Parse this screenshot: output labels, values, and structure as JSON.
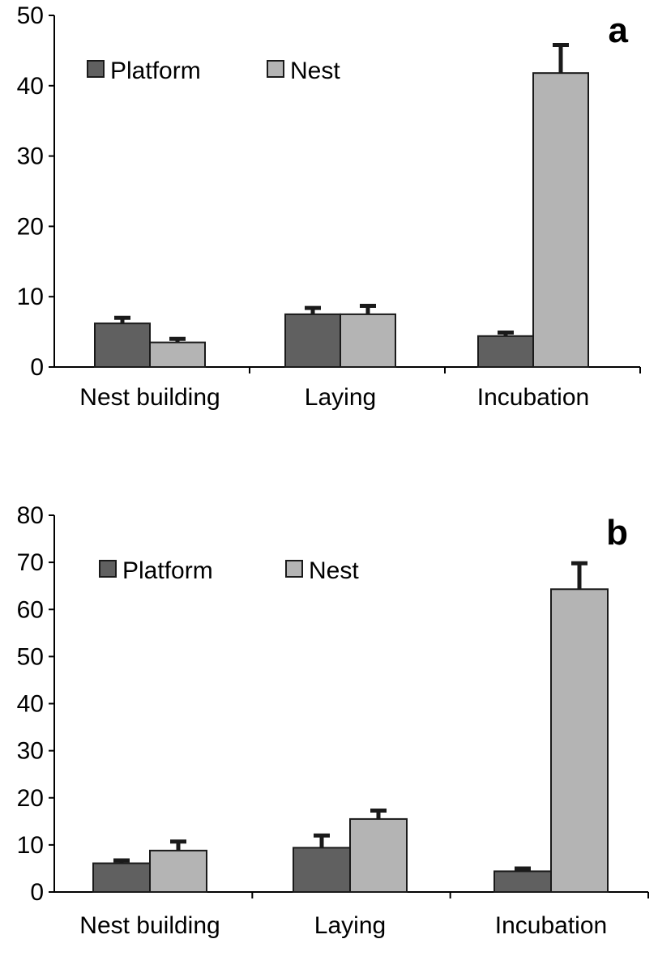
{
  "chart_data": [
    {
      "type": "bar",
      "panel_label": "a",
      "categories": [
        "Nest building",
        "Laying",
        "Incubation"
      ],
      "series": [
        {
          "name": "Platform",
          "values": [
            6.2,
            7.5,
            4.4
          ],
          "errors": [
            0.8,
            0.9,
            0.5
          ]
        },
        {
          "name": "Nest",
          "values": [
            3.5,
            7.5,
            41.8
          ],
          "errors": [
            0.5,
            1.2,
            4.0
          ]
        }
      ],
      "ylim": [
        0,
        50
      ],
      "yticks": [
        0,
        10,
        20,
        30,
        40,
        50
      ],
      "legend": "top-left",
      "grid": false
    },
    {
      "type": "bar",
      "panel_label": "b",
      "categories": [
        "Nest building",
        "Laying",
        "Incubation"
      ],
      "series": [
        {
          "name": "Platform",
          "values": [
            6.1,
            9.4,
            4.4
          ],
          "errors": [
            0.6,
            2.6,
            0.6
          ]
        },
        {
          "name": "Nest",
          "values": [
            8.8,
            15.5,
            64.3
          ],
          "errors": [
            1.9,
            1.8,
            5.5
          ]
        }
      ],
      "ylim": [
        0,
        80
      ],
      "yticks": [
        0,
        10,
        20,
        30,
        40,
        50,
        60,
        70,
        80
      ],
      "legend": "top-left",
      "grid": false
    }
  ],
  "colors": {
    "Platform": "#606060",
    "Nest": "#b4b4b4",
    "axis": "#000000",
    "outline": "#1a1a1a"
  }
}
